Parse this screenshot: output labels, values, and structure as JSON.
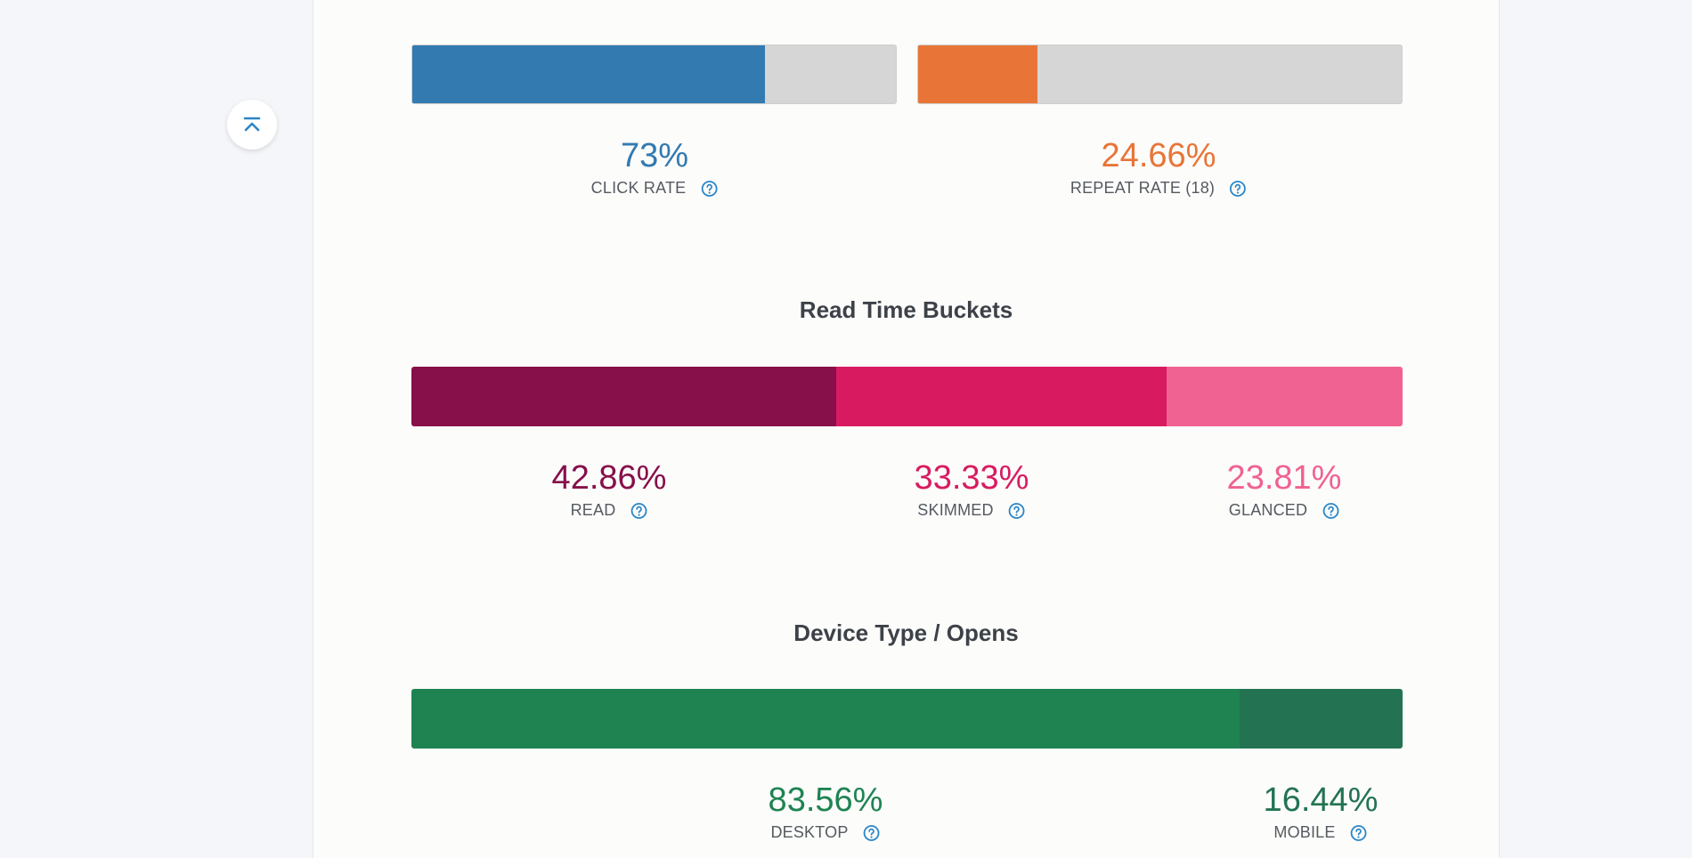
{
  "colors": {
    "click": "#337ab0",
    "repeat": "#e87537",
    "read": "#870f4a",
    "skimmed": "#d81b60",
    "glanced": "#f06292",
    "desktop": "#1e8351",
    "mobile": "#237352",
    "track": "#d6d6d6",
    "help": "#2a86c7"
  },
  "engagement": {
    "click_rate": {
      "value": "73%",
      "fraction": 0.73,
      "label": "CLICK RATE"
    },
    "repeat_rate": {
      "value": "24.66%",
      "fraction": 0.2466,
      "label": "REPEAT RATE (18)"
    }
  },
  "read_time": {
    "title": "Read Time Buckets",
    "segments": [
      {
        "key": "read",
        "value": "42.86%",
        "fraction": 0.4286,
        "label": "READ"
      },
      {
        "key": "skimmed",
        "value": "33.33%",
        "fraction": 0.3333,
        "label": "SKIMMED"
      },
      {
        "key": "glanced",
        "value": "23.81%",
        "fraction": 0.2381,
        "label": "GLANCED"
      }
    ]
  },
  "device": {
    "title": "Device Type / Opens",
    "segments": [
      {
        "key": "desktop",
        "value": "83.56%",
        "fraction": 0.8356,
        "label": "DESKTOP"
      },
      {
        "key": "mobile",
        "value": "16.44%",
        "fraction": 0.1644,
        "label": "MOBILE"
      }
    ]
  },
  "icons": {
    "back_to_top": "chevron-up-bar-icon",
    "help": "question-circle-icon"
  }
}
